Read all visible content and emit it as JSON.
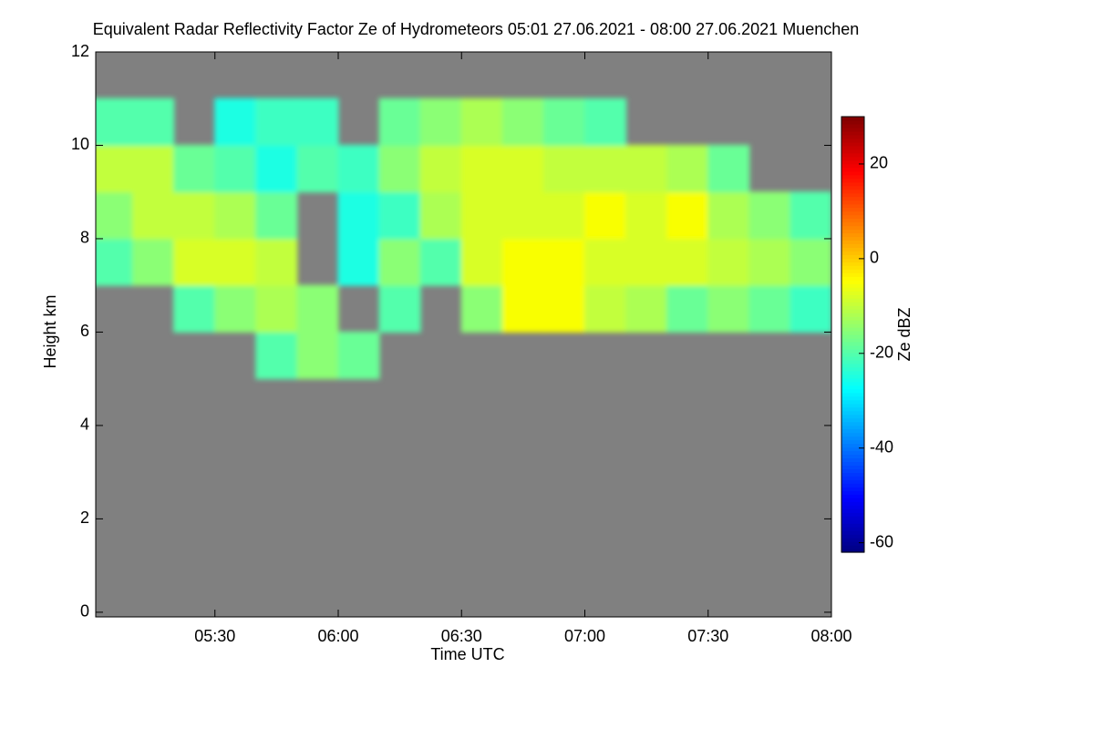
{
  "chart_data": {
    "type": "heatmap",
    "title": "Equivalent Radar Reflectivity Factor Ze of Hydrometeors   05:01 27.06.2021 - 08:00 27.06.2021 Muenchen",
    "xlabel": "Time UTC",
    "ylabel": "Height km",
    "colorbar_label": "Ze dBZ",
    "colormap": "jet",
    "background": "#808080",
    "xlim": [
      1,
      180
    ],
    "xticks": [
      {
        "value": 30,
        "label": "05:30"
      },
      {
        "value": 60,
        "label": "06:00"
      },
      {
        "value": 90,
        "label": "06:30"
      },
      {
        "value": 120,
        "label": "07:00"
      },
      {
        "value": 150,
        "label": "07:30"
      },
      {
        "value": 180,
        "label": "08:00"
      }
    ],
    "ylim": [
      -0.1,
      12
    ],
    "yticks": [
      0,
      2,
      4,
      6,
      8,
      10,
      12
    ],
    "zlim": [
      -62,
      30
    ],
    "zticks": [
      -60,
      -40,
      -20,
      0,
      20
    ],
    "x": [
      5,
      15,
      25,
      35,
      45,
      55,
      65,
      75,
      85,
      95,
      105,
      115,
      125,
      135,
      145,
      155,
      165,
      175
    ],
    "y": [
      0.5,
      1.5,
      2.5,
      3.5,
      4.5,
      5.5,
      6.5,
      7.5,
      8.5,
      9.5,
      10.5,
      11.5
    ],
    "z": [
      [
        null,
        null,
        null,
        null,
        null,
        null,
        null,
        null,
        null,
        null,
        null,
        null,
        null,
        null,
        null,
        null,
        null,
        null
      ],
      [
        null,
        null,
        null,
        null,
        null,
        null,
        null,
        null,
        null,
        null,
        null,
        null,
        null,
        null,
        null,
        null,
        null,
        null
      ],
      [
        null,
        null,
        null,
        null,
        null,
        null,
        null,
        null,
        null,
        null,
        null,
        null,
        null,
        null,
        null,
        null,
        null,
        null
      ],
      [
        null,
        null,
        null,
        null,
        null,
        null,
        null,
        null,
        null,
        null,
        null,
        null,
        null,
        null,
        null,
        null,
        null,
        null
      ],
      [
        null,
        null,
        null,
        null,
        null,
        null,
        null,
        null,
        null,
        null,
        null,
        null,
        null,
        null,
        null,
        null,
        null,
        null
      ],
      [
        null,
        null,
        null,
        null,
        -20,
        -15,
        -18,
        null,
        null,
        null,
        null,
        null,
        null,
        null,
        null,
        null,
        null,
        null
      ],
      [
        null,
        null,
        -20,
        -15,
        -12,
        -15,
        null,
        -20,
        null,
        -15,
        -5,
        -5,
        -10,
        -12,
        -18,
        -15,
        -18,
        -22
      ],
      [
        -20,
        -15,
        -8,
        -8,
        -10,
        null,
        -25,
        -15,
        -20,
        -8,
        -5,
        -5,
        -8,
        -8,
        -8,
        -10,
        -12,
        -15
      ],
      [
        -15,
        -10,
        -10,
        -12,
        -18,
        null,
        -25,
        -22,
        -12,
        -8,
        -8,
        -8,
        -5,
        -8,
        -5,
        -12,
        -15,
        -20
      ],
      [
        -10,
        -10,
        -18,
        -20,
        -25,
        -20,
        -22,
        -15,
        -10,
        -8,
        -8,
        -10,
        -10,
        -10,
        -12,
        -18,
        null,
        null
      ],
      [
        -20,
        -20,
        null,
        -25,
        -22,
        -22,
        null,
        -18,
        -15,
        -12,
        -15,
        -18,
        -20,
        null,
        null,
        null,
        null,
        null
      ],
      [
        null,
        null,
        null,
        null,
        null,
        null,
        null,
        null,
        null,
        null,
        null,
        null,
        null,
        null,
        null,
        null,
        null,
        null
      ]
    ]
  }
}
